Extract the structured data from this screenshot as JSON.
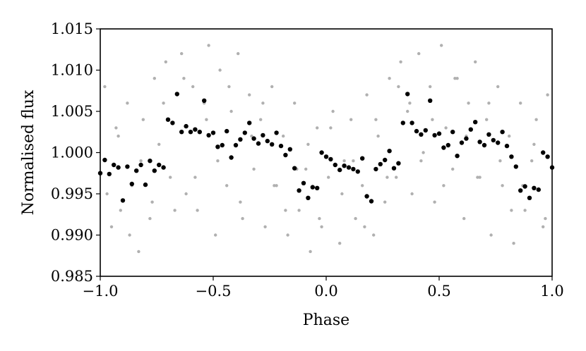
{
  "chart_data": {
    "type": "scatter",
    "xlabel": "Phase",
    "ylabel": "Normalised flux",
    "xlim": [
      -1.0,
      1.0
    ],
    "ylim": [
      0.985,
      1.015
    ],
    "x_ticks": [
      -1.0,
      -0.5,
      0.0,
      0.5,
      1.0
    ],
    "x_tick_labels": [
      "−1.0",
      "−0.5",
      "0.0",
      "0.5",
      "1.0"
    ],
    "y_ticks": [
      0.985,
      0.99,
      0.995,
      1.0,
      1.005,
      1.01,
      1.015
    ],
    "y_tick_labels": [
      "0.985",
      "0.990",
      "0.995",
      "1.000",
      "1.005",
      "1.010",
      "1.015"
    ],
    "grid": false,
    "legend": "none",
    "colors": {
      "raw": "#b0b0b0",
      "binned": "#000000"
    },
    "series": [
      {
        "style": "raw-grey-dots",
        "x": [
          -0.98,
          -0.95,
          -0.93,
          -0.91,
          -0.88,
          -0.86,
          -0.83,
          -0.81,
          -0.78,
          -0.76,
          -0.74,
          -0.71,
          -0.69,
          -0.66,
          -0.64,
          -0.62,
          -0.59,
          -0.57,
          -0.54,
          -0.52,
          -0.49,
          -0.47,
          -0.44,
          -0.42,
          -0.39,
          -0.37,
          -0.34,
          -0.32,
          -0.29,
          -0.27,
          -0.24,
          -0.22,
          -0.19,
          -0.17,
          -0.14,
          -0.12,
          -0.09,
          -0.07,
          -0.04,
          -0.02,
          0.01,
          0.03,
          0.06,
          0.08,
          0.11,
          0.13,
          0.16,
          0.18,
          0.21,
          0.23,
          0.26,
          0.28,
          0.31,
          0.33,
          0.36,
          0.38,
          0.41,
          0.43,
          0.46,
          0.48,
          0.51,
          0.53,
          0.56,
          0.58,
          0.61,
          0.63,
          0.66,
          0.68,
          0.71,
          0.73,
          0.76,
          0.78,
          0.81,
          0.83,
          0.86,
          0.88,
          0.91,
          0.93,
          0.96,
          0.98,
          -0.97,
          -0.92,
          -0.87,
          -0.82,
          -0.77,
          -0.72,
          -0.67,
          -0.63,
          -0.58,
          -0.53,
          -0.48,
          -0.43,
          -0.38,
          -0.33,
          -0.28,
          -0.23,
          -0.18,
          -0.13,
          -0.08,
          -0.03,
          0.02,
          0.07,
          0.12,
          0.17,
          0.22,
          0.27,
          0.32,
          0.37,
          0.42,
          0.47,
          0.52,
          0.57,
          0.62,
          0.67,
          0.72,
          0.77,
          0.82,
          0.87,
          0.92,
          0.97
        ],
        "y": [
          1.008,
          0.991,
          1.003,
          0.993,
          1.006,
          0.996,
          0.988,
          1.004,
          0.992,
          1.009,
          1.001,
          1.011,
          0.997,
          1.007,
          1.012,
          0.995,
          1.008,
          0.993,
          1.006,
          1.013,
          0.99,
          1.01,
          0.996,
          1.005,
          1.012,
          0.992,
          1.007,
          0.998,
          1.004,
          0.991,
          1.008,
          0.996,
          1.002,
          0.99,
          1.006,
          0.993,
          0.998,
          0.988,
          1.003,
          0.991,
          0.997,
          1.005,
          0.989,
          0.999,
          1.004,
          0.992,
          0.996,
          1.007,
          0.99,
          1.002,
          0.994,
          1.009,
          0.997,
          1.011,
          1.005,
          0.995,
          1.012,
          1.0,
          1.008,
          0.994,
          1.013,
          1.003,
          0.998,
          1.009,
          0.992,
          1.006,
          1.011,
          0.997,
          1.004,
          0.99,
          1.008,
          0.996,
          1.002,
          0.989,
          1.006,
          0.993,
          0.999,
          1.004,
          0.991,
          1.007,
          0.995,
          1.002,
          0.99,
          0.999,
          0.994,
          1.006,
          0.993,
          1.009,
          0.997,
          1.004,
          0.999,
          1.008,
          0.994,
          1.002,
          1.006,
          0.996,
          0.993,
          0.998,
          1.001,
          0.992,
          1.003,
          0.995,
          0.999,
          0.991,
          1.004,
          0.997,
          1.008,
          1.006,
          0.999,
          1.004,
          0.996,
          1.009,
          1.002,
          0.997,
          1.006,
          0.999,
          0.993,
          0.996,
          1.001,
          0.992
        ]
      },
      {
        "style": "binned-black-dots",
        "x": [
          -1.0,
          -0.98,
          -0.96,
          -0.94,
          -0.92,
          -0.9,
          -0.88,
          -0.86,
          -0.84,
          -0.82,
          -0.8,
          -0.78,
          -0.76,
          -0.74,
          -0.72,
          -0.7,
          -0.68,
          -0.66,
          -0.64,
          -0.62,
          -0.6,
          -0.58,
          -0.56,
          -0.54,
          -0.52,
          -0.5,
          -0.48,
          -0.46,
          -0.44,
          -0.42,
          -0.4,
          -0.38,
          -0.36,
          -0.34,
          -0.32,
          -0.3,
          -0.28,
          -0.26,
          -0.24,
          -0.22,
          -0.2,
          -0.18,
          -0.16,
          -0.14,
          -0.12,
          -0.1,
          -0.08,
          -0.06,
          -0.04,
          -0.02,
          0.0,
          0.02,
          0.04,
          0.06,
          0.08,
          0.1,
          0.12,
          0.14,
          0.16,
          0.18,
          0.2,
          0.22,
          0.24,
          0.26,
          0.28,
          0.3,
          0.32,
          0.34,
          0.36,
          0.38,
          0.4,
          0.42,
          0.44,
          0.46,
          0.48,
          0.5,
          0.52,
          0.54,
          0.56,
          0.58,
          0.6,
          0.62,
          0.64,
          0.66,
          0.68,
          0.7,
          0.72,
          0.74,
          0.76,
          0.78,
          0.8,
          0.82,
          0.84,
          0.86,
          0.88,
          0.9,
          0.92,
          0.94,
          0.96,
          0.98,
          1.0
        ],
        "y": [
          0.9975,
          0.9991,
          0.9974,
          0.9985,
          0.9982,
          0.9942,
          0.9983,
          0.9962,
          0.9978,
          0.9985,
          0.9961,
          0.999,
          0.9978,
          0.9985,
          0.9982,
          1.004,
          1.0036,
          1.0071,
          1.0025,
          1.0032,
          1.0025,
          1.0028,
          1.0025,
          1.0063,
          1.0021,
          1.0024,
          1.0007,
          1.0009,
          1.0026,
          0.9994,
          1.0009,
          1.0016,
          1.0024,
          1.0036,
          1.0017,
          1.0011,
          1.0021,
          1.0014,
          1.001,
          1.0024,
          1.0008,
          0.9997,
          1.0004,
          0.9981,
          0.9954,
          0.9963,
          0.9945,
          0.9958,
          0.9957,
          1.0,
          0.9995,
          0.9992,
          0.9985,
          0.9979,
          0.9984,
          0.9982,
          0.998,
          0.9977,
          0.9993,
          0.9947,
          0.9941,
          0.998,
          0.9986,
          0.9991,
          1.0002,
          0.9981,
          0.9987,
          1.0036,
          1.0071,
          1.0036,
          1.0026,
          1.0022,
          1.0027,
          1.0063,
          1.0021,
          1.0023,
          1.0006,
          1.0009,
          1.0025,
          0.9996,
          1.0012,
          1.0017,
          1.0028,
          1.0037,
          1.0013,
          1.0009,
          1.0022,
          1.0015,
          1.0012,
          1.0025,
          1.0008,
          0.9995,
          0.9983,
          0.9954,
          0.9959,
          0.9945,
          0.9957,
          0.9955,
          1.0,
          0.9995,
          0.9982
        ]
      }
    ]
  }
}
